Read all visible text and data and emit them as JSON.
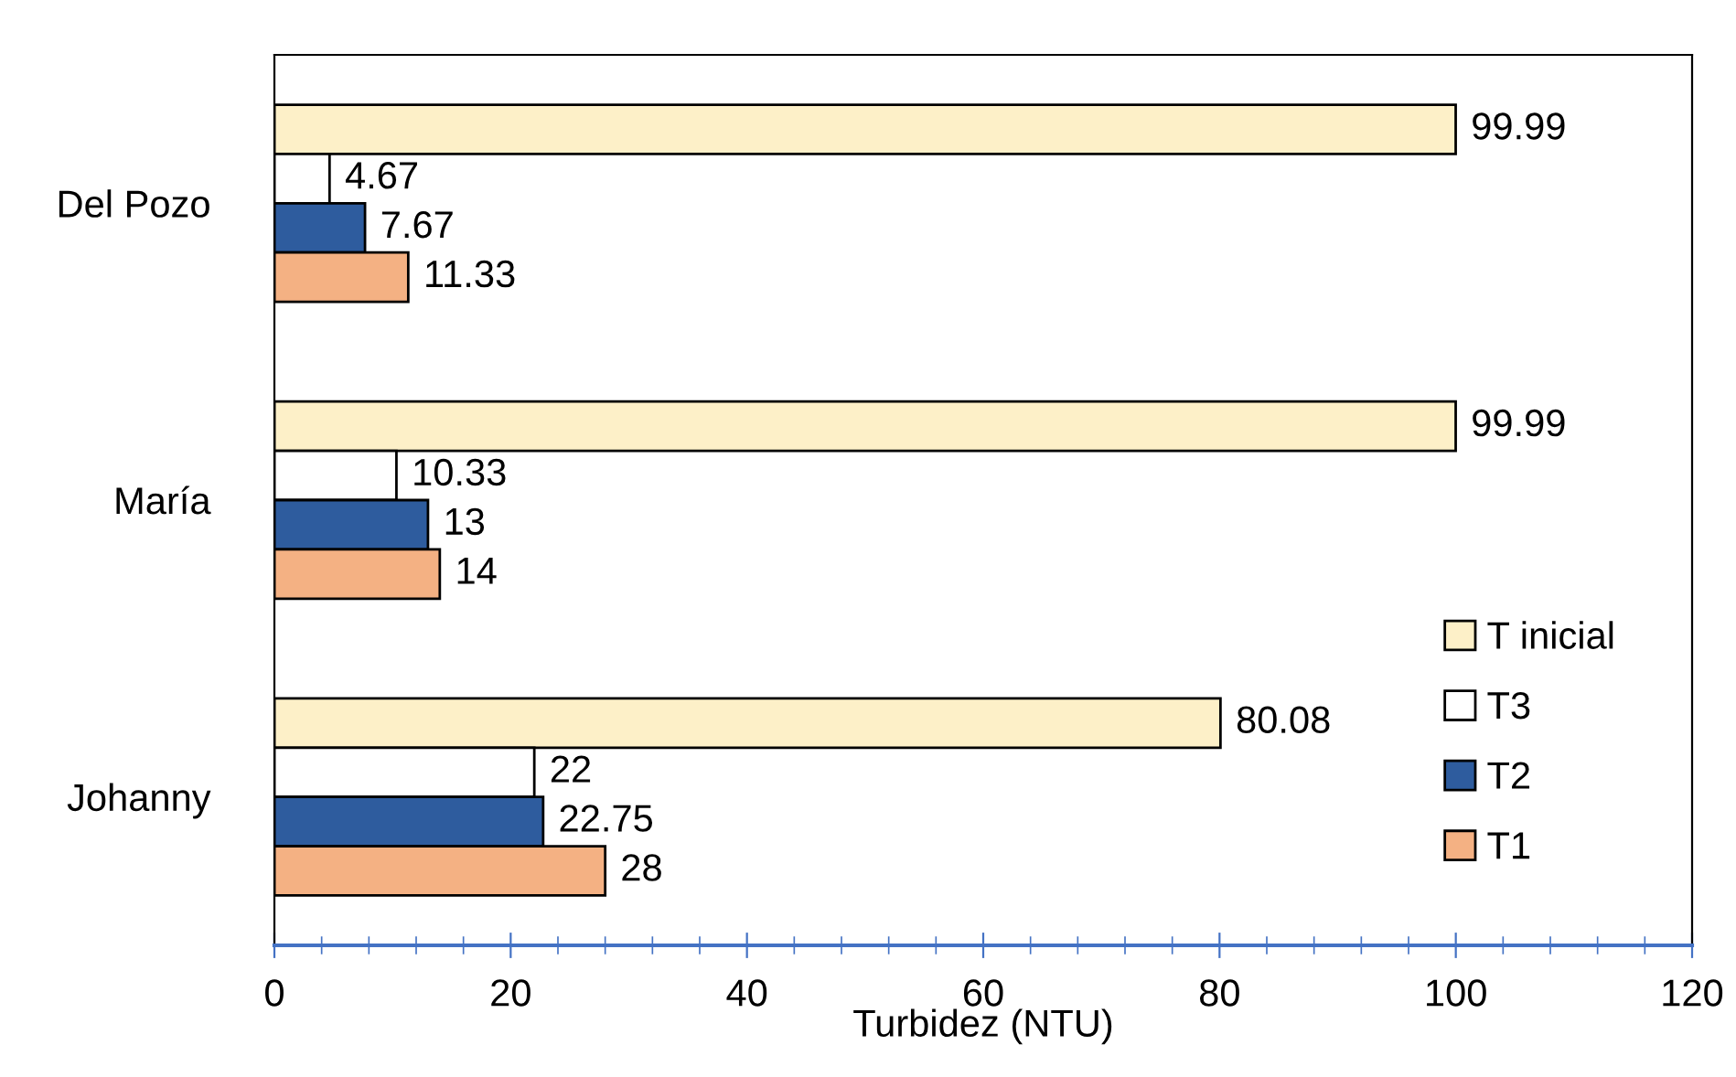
{
  "chart_data": {
    "type": "bar",
    "orientation": "horizontal",
    "xlabel": "Turbidez (NTU)",
    "categories": [
      "Del Pozo",
      "María",
      "Johanny"
    ],
    "series": [
      {
        "name": "T inicial",
        "color": "#fdf0c8",
        "values": [
          99.99,
          99.99,
          80.08
        ]
      },
      {
        "name": "T3",
        "color": "#ffffff",
        "values": [
          4.67,
          10.33,
          22
        ]
      },
      {
        "name": "T2",
        "color": "#2e5c9e",
        "values": [
          7.67,
          13,
          22.75
        ]
      },
      {
        "name": "T1",
        "color": "#f4b183",
        "values": [
          11.33,
          14,
          28
        ]
      }
    ],
    "xlim": [
      0,
      120
    ],
    "xticks": [
      0,
      20,
      40,
      60,
      80,
      100,
      120
    ],
    "data_labels": true,
    "legend": "bottom right",
    "grid": false
  }
}
